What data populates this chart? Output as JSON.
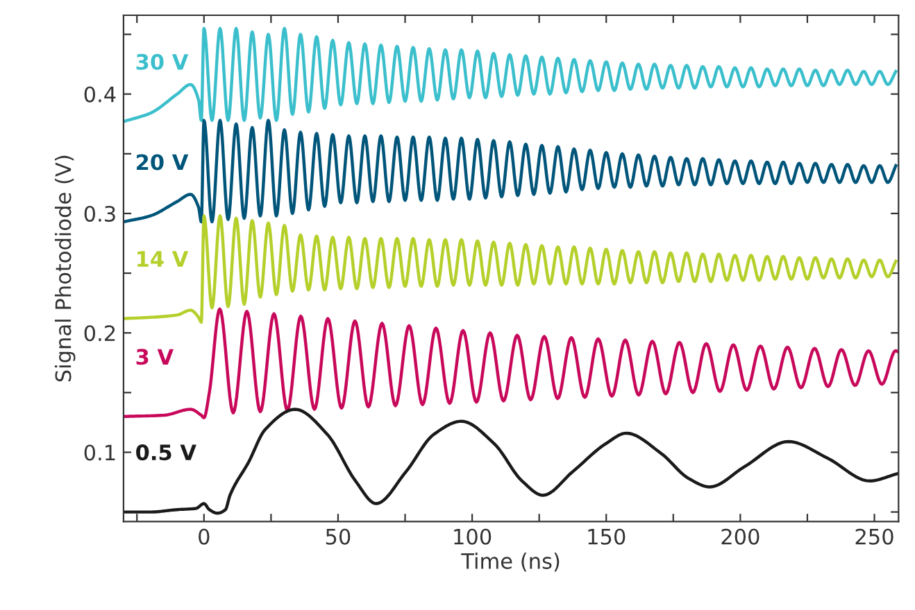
{
  "chart_data": {
    "type": "line",
    "xlabel": "Time (ns)",
    "ylabel": "Signal Photodiode (V)",
    "xlim": [
      -30,
      259
    ],
    "ylim": [
      0.042,
      0.466
    ],
    "xticks": [
      {
        "value": -25,
        "label": null
      },
      0,
      {
        "value": 25,
        "label": null
      },
      50,
      {
        "value": 75,
        "label": null
      },
      100,
      {
        "value": 125,
        "label": null
      },
      150,
      {
        "value": 175,
        "label": null
      },
      200,
      {
        "value": 225,
        "label": null
      },
      250
    ],
    "yticks": [
      {
        "value": 0.05,
        "label": null
      },
      0.1,
      {
        "value": 0.15,
        "label": null
      },
      0.2,
      {
        "value": 0.25,
        "label": null
      },
      0.3,
      {
        "value": 0.35,
        "label": null
      },
      0.4,
      {
        "value": 0.45,
        "label": null
      }
    ],
    "grid": false,
    "legend": false,
    "marker": "none",
    "line_style": "solid",
    "series": [
      {
        "name": "30 V",
        "color": "#3bbfcc",
        "x": [
          -30,
          -20,
          -10,
          -5,
          -2,
          -1,
          0,
          3,
          6,
          9,
          12,
          15,
          18,
          21,
          24,
          27,
          30,
          33,
          36,
          39,
          42,
          45,
          48,
          51,
          54,
          57,
          60,
          63,
          66,
          69,
          72,
          75,
          78,
          81,
          84,
          87,
          90,
          93,
          96,
          99,
          102,
          105,
          108,
          111,
          114,
          117,
          120,
          123,
          126,
          129,
          132,
          135,
          138,
          141,
          144,
          147,
          150,
          153,
          156,
          159,
          162,
          165,
          168,
          171,
          174,
          177,
          180,
          183,
          186,
          189,
          192,
          195,
          198,
          201,
          204,
          207,
          210,
          213,
          216,
          219,
          222,
          225,
          228,
          231,
          234,
          237,
          240,
          243,
          246,
          249,
          252,
          255,
          258
        ],
        "values": [
          0.377,
          0.384,
          0.4,
          0.408,
          0.395,
          0.378,
          0.455,
          0.378,
          0.455,
          0.378,
          0.455,
          0.378,
          0.452,
          0.38,
          0.45,
          0.378,
          0.455,
          0.383,
          0.45,
          0.385,
          0.448,
          0.388,
          0.445,
          0.391,
          0.443,
          0.392,
          0.442,
          0.392,
          0.441,
          0.393,
          0.44,
          0.394,
          0.439,
          0.394,
          0.438,
          0.395,
          0.437,
          0.396,
          0.437,
          0.397,
          0.436,
          0.397,
          0.434,
          0.398,
          0.433,
          0.399,
          0.432,
          0.4,
          0.431,
          0.4,
          0.43,
          0.401,
          0.429,
          0.402,
          0.428,
          0.403,
          0.427,
          0.403,
          0.426,
          0.404,
          0.425,
          0.404,
          0.425,
          0.405,
          0.424,
          0.405,
          0.424,
          0.405,
          0.423,
          0.406,
          0.423,
          0.406,
          0.422,
          0.406,
          0.422,
          0.406,
          0.421,
          0.407,
          0.421,
          0.407,
          0.421,
          0.407,
          0.42,
          0.407,
          0.42,
          0.408,
          0.42,
          0.408,
          0.419,
          0.408,
          0.419,
          0.408,
          0.419
        ]
      },
      {
        "name": "20 V",
        "color": "#00557a",
        "x": [
          -30,
          -20,
          -10,
          -5,
          -2,
          -1,
          0,
          3,
          6,
          9,
          12,
          15,
          18,
          21,
          24,
          27,
          30,
          33,
          36,
          39,
          42,
          45,
          48,
          51,
          54,
          57,
          60,
          63,
          66,
          69,
          72,
          75,
          78,
          81,
          84,
          87,
          90,
          93,
          96,
          99,
          102,
          105,
          108,
          111,
          114,
          117,
          120,
          123,
          126,
          129,
          132,
          135,
          138,
          141,
          144,
          147,
          150,
          153,
          156,
          159,
          162,
          165,
          168,
          171,
          174,
          177,
          180,
          183,
          186,
          189,
          192,
          195,
          198,
          201,
          204,
          207,
          210,
          213,
          216,
          219,
          222,
          225,
          228,
          231,
          234,
          237,
          240,
          243,
          246,
          249,
          252,
          255,
          258
        ],
        "values": [
          0.293,
          0.298,
          0.31,
          0.316,
          0.305,
          0.293,
          0.378,
          0.293,
          0.378,
          0.295,
          0.375,
          0.296,
          0.372,
          0.298,
          0.378,
          0.298,
          0.37,
          0.3,
          0.368,
          0.303,
          0.367,
          0.306,
          0.366,
          0.309,
          0.365,
          0.309,
          0.365,
          0.31,
          0.365,
          0.31,
          0.364,
          0.311,
          0.364,
          0.311,
          0.364,
          0.311,
          0.363,
          0.312,
          0.363,
          0.312,
          0.362,
          0.313,
          0.361,
          0.314,
          0.36,
          0.315,
          0.358,
          0.316,
          0.357,
          0.317,
          0.356,
          0.318,
          0.354,
          0.32,
          0.353,
          0.321,
          0.351,
          0.322,
          0.35,
          0.322,
          0.349,
          0.323,
          0.348,
          0.323,
          0.347,
          0.324,
          0.346,
          0.324,
          0.346,
          0.324,
          0.345,
          0.325,
          0.344,
          0.325,
          0.344,
          0.325,
          0.343,
          0.325,
          0.343,
          0.325,
          0.342,
          0.326,
          0.342,
          0.326,
          0.341,
          0.326,
          0.341,
          0.326,
          0.34,
          0.326,
          0.34,
          0.326,
          0.34
        ]
      },
      {
        "name": "14 V",
        "color": "#b5cf2b",
        "x": [
          -30,
          -20,
          -10,
          -5,
          -2,
          -1,
          0,
          3,
          6,
          9,
          12,
          15,
          18,
          21,
          24,
          27,
          30,
          33,
          36,
          39,
          42,
          45,
          48,
          51,
          54,
          57,
          60,
          63,
          66,
          69,
          72,
          75,
          78,
          81,
          84,
          87,
          90,
          93,
          96,
          99,
          102,
          105,
          108,
          111,
          114,
          117,
          120,
          123,
          126,
          129,
          132,
          135,
          138,
          141,
          144,
          147,
          150,
          153,
          156,
          159,
          162,
          165,
          168,
          171,
          174,
          177,
          180,
          183,
          186,
          189,
          192,
          195,
          198,
          201,
          204,
          207,
          210,
          213,
          216,
          219,
          222,
          225,
          228,
          231,
          234,
          237,
          240,
          243,
          246,
          249,
          252,
          255,
          258
        ],
        "values": [
          0.212,
          0.213,
          0.215,
          0.219,
          0.213,
          0.209,
          0.298,
          0.221,
          0.298,
          0.222,
          0.296,
          0.224,
          0.294,
          0.23,
          0.292,
          0.232,
          0.29,
          0.235,
          0.282,
          0.236,
          0.281,
          0.236,
          0.28,
          0.237,
          0.28,
          0.237,
          0.279,
          0.238,
          0.279,
          0.238,
          0.279,
          0.239,
          0.279,
          0.239,
          0.278,
          0.239,
          0.278,
          0.24,
          0.278,
          0.24,
          0.277,
          0.24,
          0.276,
          0.24,
          0.275,
          0.24,
          0.274,
          0.241,
          0.273,
          0.241,
          0.272,
          0.241,
          0.272,
          0.241,
          0.271,
          0.241,
          0.27,
          0.241,
          0.269,
          0.242,
          0.268,
          0.242,
          0.268,
          0.242,
          0.267,
          0.243,
          0.267,
          0.243,
          0.266,
          0.243,
          0.266,
          0.244,
          0.265,
          0.244,
          0.265,
          0.244,
          0.264,
          0.245,
          0.264,
          0.245,
          0.263,
          0.245,
          0.263,
          0.246,
          0.262,
          0.246,
          0.262,
          0.246,
          0.261,
          0.247,
          0.261,
          0.247,
          0.26
        ]
      },
      {
        "name": "3 V",
        "color": "#c8085a",
        "x": [
          -30,
          -15,
          -5,
          -1,
          0,
          2,
          5.9,
          10.9,
          16.0,
          21.0,
          26.1,
          31.1,
          36.1,
          41.2,
          46.2,
          51.3,
          56.3,
          61.3,
          66.4,
          71.4,
          76.5,
          81.5,
          86.5,
          91.6,
          96.6,
          101.6,
          106.7,
          111.7,
          116.8,
          121.8,
          126.9,
          131.9,
          137.0,
          142.0,
          147.0,
          152.1,
          157.1,
          162.1,
          167.2,
          172.2,
          177.3,
          182.3,
          187.3,
          192.4,
          197.4,
          202.4,
          207.5,
          212.5,
          217.6,
          222.6,
          227.7,
          232.7,
          237.7,
          242.8,
          247.8,
          252.8,
          257.9,
          259
        ],
        "values": [
          0.13,
          0.131,
          0.136,
          0.131,
          0.129,
          0.15,
          0.22,
          0.133,
          0.218,
          0.134,
          0.216,
          0.135,
          0.214,
          0.136,
          0.212,
          0.137,
          0.21,
          0.138,
          0.208,
          0.139,
          0.206,
          0.14,
          0.204,
          0.141,
          0.202,
          0.142,
          0.2,
          0.143,
          0.198,
          0.144,
          0.197,
          0.145,
          0.196,
          0.146,
          0.195,
          0.147,
          0.194,
          0.148,
          0.193,
          0.149,
          0.192,
          0.15,
          0.191,
          0.151,
          0.19,
          0.152,
          0.189,
          0.153,
          0.188,
          0.154,
          0.187,
          0.155,
          0.186,
          0.156,
          0.185,
          0.157,
          0.185,
          0.184
        ]
      },
      {
        "name": "0.5 V",
        "color": "#1a1a1a",
        "x": [
          -30,
          -20,
          -10,
          -3,
          0,
          2,
          5,
          8,
          9.7,
          16.7,
          22.8,
          34,
          46,
          56.5,
          64.2,
          75.4,
          85.7,
          96,
          108.3,
          118.6,
          126.4,
          137.6,
          149.7,
          157.5,
          170.5,
          180.8,
          188.6,
          201.6,
          217.9,
          232.6,
          248.2,
          258.5
        ],
        "values": [
          0.05,
          0.05,
          0.052,
          0.053,
          0.057,
          0.052,
          0.049,
          0.052,
          0.064,
          0.092,
          0.119,
          0.136,
          0.115,
          0.076,
          0.057,
          0.084,
          0.115,
          0.126,
          0.107,
          0.076,
          0.064,
          0.084,
          0.107,
          0.116,
          0.099,
          0.078,
          0.071,
          0.088,
          0.109,
          0.095,
          0.076,
          0.082
        ]
      }
    ]
  }
}
